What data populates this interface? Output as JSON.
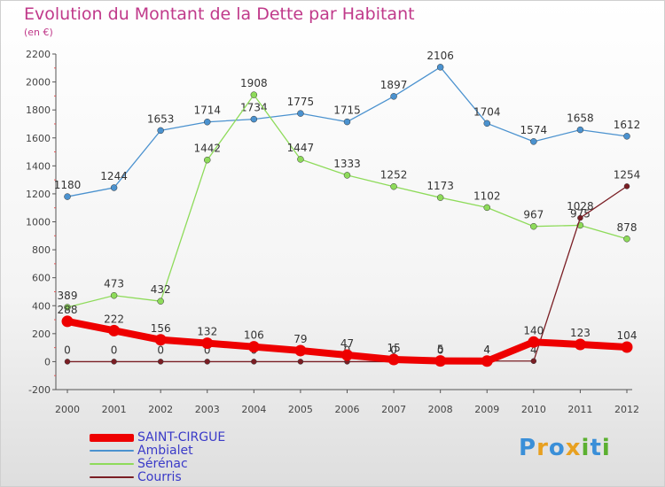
{
  "title": "Evolution du Montant de la Dette par Habitant",
  "unit": "(en €)",
  "logo": {
    "text": "Proxiti",
    "letters": [
      {
        "ch": "P",
        "color": "#3a8fd8"
      },
      {
        "ch": "r",
        "color": "#e8a020"
      },
      {
        "ch": "o",
        "color": "#3a8fd8"
      },
      {
        "ch": "x",
        "color": "#e8a020"
      },
      {
        "ch": "i",
        "color": "#5bb030"
      },
      {
        "ch": "t",
        "color": "#3a8fd8"
      },
      {
        "ch": "i",
        "color": "#5bb030"
      }
    ]
  },
  "chart_data": {
    "type": "line",
    "title": "Evolution du Montant de la Dette par Habitant",
    "ylabel": "(en €)",
    "ylim": [
      -200,
      2200
    ],
    "yticks": [
      -200,
      0,
      200,
      400,
      600,
      800,
      1000,
      1200,
      1400,
      1600,
      1800,
      2000,
      2200
    ],
    "categories": [
      "2000",
      "2001",
      "2002",
      "2003",
      "2004",
      "2005",
      "2006",
      "2007",
      "2008",
      "2009",
      "2010",
      "2011",
      "2012"
    ],
    "grid": false,
    "legend_position": "bottom-left",
    "series": [
      {
        "name": "Ambialet",
        "color": "#4b92cf",
        "values": [
          1180,
          1244,
          1653,
          1714,
          1734,
          1775,
          1715,
          1897,
          2106,
          1704,
          1574,
          1658,
          1612
        ]
      },
      {
        "name": "Sérénac",
        "color": "#8edb5a",
        "values": [
          389,
          473,
          432,
          1442,
          1908,
          1447,
          1333,
          1252,
          1173,
          1102,
          967,
          975,
          878
        ]
      },
      {
        "name": "Courris",
        "color": "#7a1e24",
        "values": [
          0,
          0,
          0,
          0,
          0,
          0,
          0,
          0,
          0,
          4,
          4,
          1028,
          1254
        ]
      },
      {
        "name": "SAINT-CIRGUE",
        "color": "#ee0000",
        "values": [
          288,
          222,
          156,
          132,
          106,
          79,
          47,
          15,
          5,
          4,
          140,
          123,
          104
        ]
      }
    ]
  }
}
